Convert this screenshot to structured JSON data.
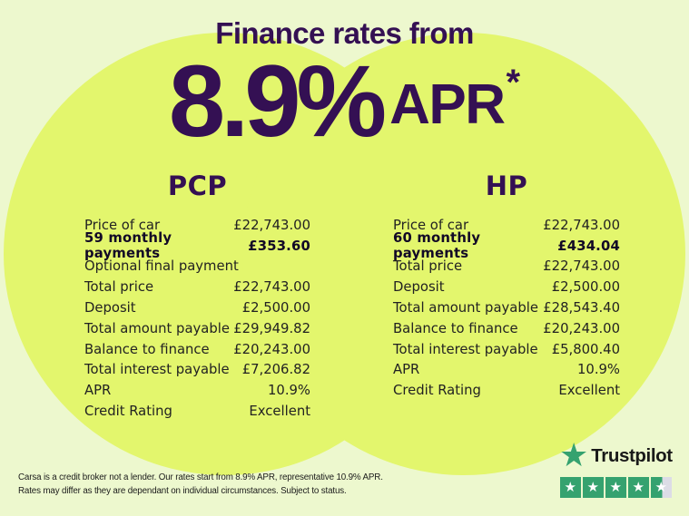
{
  "header": {
    "title": "Finance rates from",
    "rate": "8.9%",
    "rate_suffix": "APR",
    "rate_asterisk": "*"
  },
  "columns": [
    {
      "title": "PCP",
      "rows": [
        {
          "label": "Price of car",
          "value": "£22,743.00",
          "bold": false
        },
        {
          "label": "59 monthly payments",
          "value": "£353.60",
          "bold": true
        },
        {
          "label": "Optional final payment",
          "value": "",
          "bold": false
        },
        {
          "label": "Total price",
          "value": "£22,743.00",
          "bold": false
        },
        {
          "label": "Deposit",
          "value": "£2,500.00",
          "bold": false
        },
        {
          "label": "Total amount payable",
          "value": "£29,949.82",
          "bold": false
        },
        {
          "label": "Balance to finance",
          "value": "£20,243.00",
          "bold": false
        },
        {
          "label": "Total interest payable",
          "value": "£7,206.82",
          "bold": false
        },
        {
          "label": "APR",
          "value": "10.9%",
          "bold": false
        },
        {
          "label": "Credit Rating",
          "value": "Excellent",
          "bold": false
        }
      ]
    },
    {
      "title": "HP",
      "rows": [
        {
          "label": "Price of car",
          "value": "£22,743.00",
          "bold": false
        },
        {
          "label": "60 monthly payments",
          "value": "£434.04",
          "bold": true
        },
        {
          "label": "Total price",
          "value": "£22,743.00",
          "bold": false
        },
        {
          "label": "Deposit",
          "value": "£2,500.00",
          "bold": false
        },
        {
          "label": "Total amount payable",
          "value": "£28,543.40",
          "bold": false
        },
        {
          "label": "Balance to finance",
          "value": "£20,243.00",
          "bold": false
        },
        {
          "label": "Total interest payable",
          "value": "£5,800.40",
          "bold": false
        },
        {
          "label": "APR",
          "value": "10.9%",
          "bold": false
        },
        {
          "label": "Credit Rating",
          "value": "Excellent",
          "bold": false
        }
      ]
    }
  ],
  "footer": {
    "disclaimer_line1": "Carsa is a credit broker not a lender. Our rates start from 8.9% APR, representative 10.9% APR.",
    "disclaimer_line2": "Rates may differ as they are dependant on individual circumstances. Subject to status.",
    "trustpilot": {
      "brand": "Trustpilot",
      "rating_stars": 4.5,
      "star_icon": "star-icon",
      "star_color": "#35a26f",
      "star_empty_color": "#dcdce6"
    }
  },
  "colors": {
    "background": "#edf8ce",
    "circle": "#e3f66d",
    "heading": "#341053",
    "body_text": "#222222",
    "tp_green": "#35a26f"
  }
}
